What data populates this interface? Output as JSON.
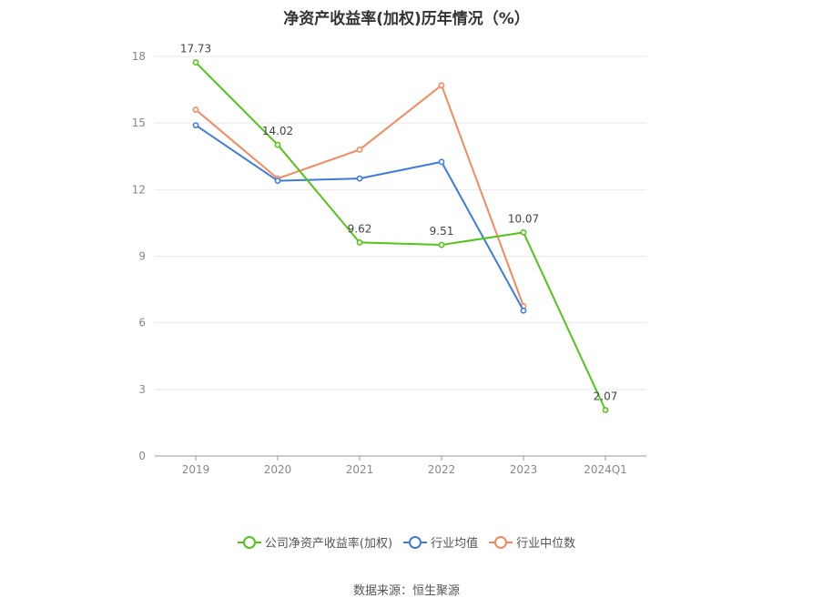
{
  "chart_data": {
    "type": "line",
    "title": "净资产收益率(加权)历年情况（%）",
    "categories": [
      "2019",
      "2020",
      "2021",
      "2022",
      "2023",
      "2024Q1"
    ],
    "ylim": [
      0,
      18
    ],
    "yticks": [
      0,
      3,
      6,
      9,
      12,
      15,
      18
    ],
    "grid": true,
    "legend_position": "bottom",
    "series": [
      {
        "name": "公司净资产收益率(加权)",
        "color": "#52c41a",
        "values": [
          17.73,
          14.02,
          9.62,
          9.51,
          10.07,
          2.07
        ],
        "labels": [
          "17.73",
          "14.02",
          "9.62",
          "9.51",
          "10.07",
          "2.07"
        ]
      },
      {
        "name": "行业均值",
        "color": "#3d7be0",
        "values": [
          14.9,
          12.4,
          12.5,
          13.25,
          6.55,
          null
        ]
      },
      {
        "name": "行业中位数",
        "color": "#f4895f",
        "values": [
          15.6,
          12.5,
          13.8,
          16.7,
          6.75,
          null
        ]
      }
    ],
    "source": "数据来源：恒生聚源"
  }
}
